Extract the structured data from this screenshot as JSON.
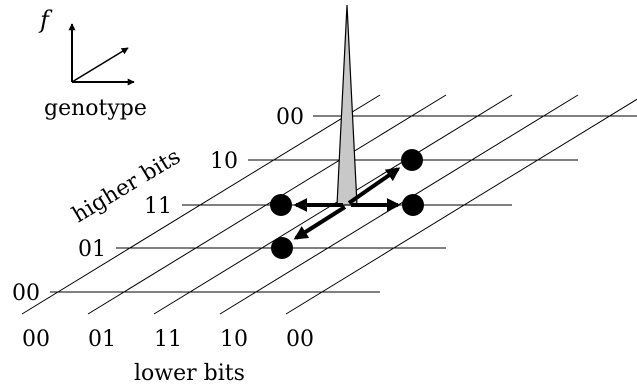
{
  "legend": {
    "fitness_symbol": "f",
    "genotype_label": "genotype"
  },
  "grid": {
    "higher_bits_label": "higher bits",
    "lower_bits_label": "lower bits",
    "row_labels": [
      "00",
      "10",
      "11",
      "01",
      "00"
    ],
    "column_labels": [
      "00",
      "01",
      "11",
      "10",
      "00"
    ]
  },
  "colors": {
    "peak_fill": "#c8c8c8",
    "line": "#000000",
    "node": "#000000"
  }
}
